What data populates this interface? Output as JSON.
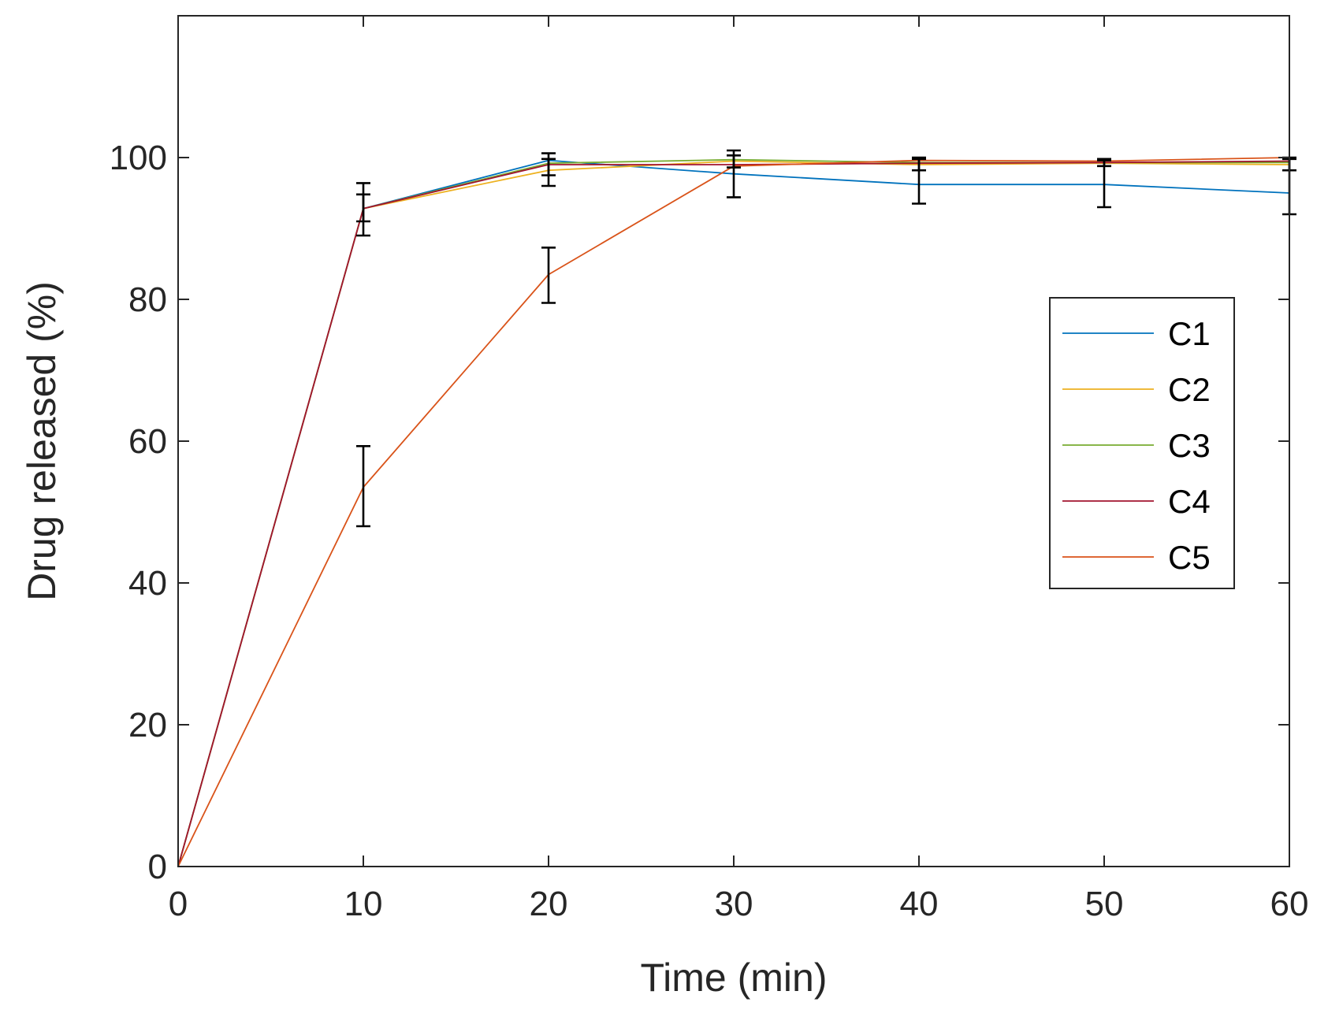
{
  "chart_data": {
    "type": "line",
    "title": "",
    "xlabel": "Time (min)",
    "ylabel": "Drug released (%)",
    "xlim": [
      0,
      60
    ],
    "ylim": [
      0,
      120
    ],
    "xticks": [
      0,
      10,
      20,
      30,
      40,
      50,
      60
    ],
    "yticks": [
      0,
      20,
      40,
      60,
      80,
      100
    ],
    "grid": false,
    "legend_position": "right",
    "x": [
      0,
      10,
      20,
      30,
      40,
      50,
      60
    ],
    "series": [
      {
        "name": "C1",
        "color": "#0072BD",
        "values": [
          0,
          92.8,
          99.6,
          97.7,
          96.2,
          96.2,
          95.0
        ]
      },
      {
        "name": "C2",
        "color": "#EDB120",
        "values": [
          0,
          92.8,
          98.2,
          99.5,
          99.0,
          99.2,
          99.0
        ]
      },
      {
        "name": "C3",
        "color": "#77AC30",
        "values": [
          0,
          92.8,
          99.2,
          99.7,
          99.3,
          99.3,
          99.3
        ]
      },
      {
        "name": "C4",
        "color": "#A2142F",
        "values": [
          0,
          92.8,
          99.0,
          99.0,
          99.2,
          99.3,
          99.5
        ]
      },
      {
        "name": "C5",
        "color": "#D95319",
        "values": [
          0,
          53.5,
          83.5,
          98.8,
          99.6,
          99.5,
          100.0
        ]
      }
    ],
    "error_bars": [
      {
        "x": 10,
        "low": 48.0,
        "high": 59.3
      },
      {
        "x": 10,
        "low": 89.0,
        "high": 96.4
      },
      {
        "x": 10,
        "low": 91.0,
        "high": 94.8
      },
      {
        "x": 20,
        "low": 79.5,
        "high": 87.3
      },
      {
        "x": 20,
        "low": 96.0,
        "high": 100.6
      },
      {
        "x": 20,
        "low": 97.5,
        "high": 99.8
      },
      {
        "x": 30,
        "low": 94.4,
        "high": 101.0
      },
      {
        "x": 30,
        "low": 98.6,
        "high": 100.3
      },
      {
        "x": 40,
        "low": 93.5,
        "high": 99.8
      },
      {
        "x": 40,
        "low": 98.2,
        "high": 100.0
      },
      {
        "x": 50,
        "low": 93.0,
        "high": 99.6
      },
      {
        "x": 50,
        "low": 98.8,
        "high": 99.8
      },
      {
        "x": 60,
        "low": 92.0,
        "high": 99.8
      },
      {
        "x": 60,
        "low": 98.2,
        "high": 100.0
      }
    ]
  }
}
